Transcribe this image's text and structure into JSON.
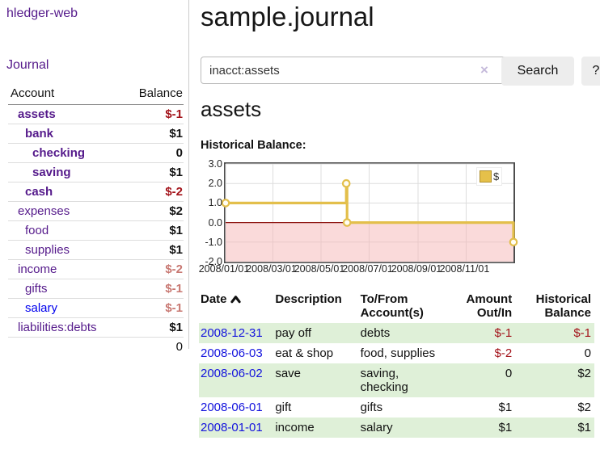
{
  "app": {
    "title": "hledger-web"
  },
  "sidebar": {
    "journal_link": "Journal",
    "accounts_table": {
      "headers": [
        "Account",
        "Balance"
      ],
      "rows": [
        {
          "name": "assets",
          "level": 1,
          "bold": true,
          "balance": "$-1",
          "balance_style": "neg"
        },
        {
          "name": "bank",
          "level": 2,
          "bold": true,
          "balance": "$1",
          "balance_style": ""
        },
        {
          "name": "checking",
          "level": 3,
          "bold": true,
          "balance": "0",
          "balance_style": ""
        },
        {
          "name": "saving",
          "level": 3,
          "bold": true,
          "balance": "$1",
          "balance_style": ""
        },
        {
          "name": "cash",
          "level": 2,
          "bold": true,
          "balance": "$-2",
          "balance_style": "neg"
        },
        {
          "name": "expenses",
          "level": 1,
          "bold": false,
          "balance": "$2",
          "balance_style": ""
        },
        {
          "name": "food",
          "level": 2,
          "bold": false,
          "balance": "$1",
          "balance_style": ""
        },
        {
          "name": "supplies",
          "level": 2,
          "bold": false,
          "balance": "$1",
          "balance_style": ""
        },
        {
          "name": "income",
          "level": 1,
          "bold": false,
          "balance": "$-2",
          "balance_style": "softneg"
        },
        {
          "name": "gifts",
          "level": 2,
          "bold": false,
          "balance": "$-1",
          "balance_style": "softneg"
        },
        {
          "name": "salary",
          "level": 2,
          "bold": false,
          "balance": "$-1",
          "balance_style": "softneg",
          "link_blue": true
        },
        {
          "name": "liabilities:debts",
          "level": 1,
          "bold": false,
          "balance": "$1",
          "balance_style": ""
        }
      ],
      "total": "0"
    }
  },
  "main": {
    "title": "sample.journal",
    "search": {
      "value": "inacct:assets",
      "clear_icon": "×",
      "button_label": "Search",
      "help_label": "?"
    },
    "account_heading": "assets",
    "chart_label": "Historical Balance:"
  },
  "chart_data": {
    "type": "line",
    "title": "Historical Balance:",
    "step": true,
    "legend": [
      {
        "label": "$",
        "color": "#e5c04a"
      }
    ],
    "ylim": [
      -2,
      3
    ],
    "y_ticks": [
      "3.0",
      "2.0",
      "1.0",
      "0.0",
      "-1.0",
      "-2.0"
    ],
    "x_range_days": [
      0,
      365
    ],
    "x_ticks": [
      {
        "label": "2008/01/01",
        "day": 0
      },
      {
        "label": "2008/03/01",
        "day": 60
      },
      {
        "label": "2008/05/01",
        "day": 121
      },
      {
        "label": "2008/07/01",
        "day": 182
      },
      {
        "label": "2008/09/01",
        "day": 244
      },
      {
        "label": "2008/11/01",
        "day": 305
      }
    ],
    "points": [
      {
        "date": "2008-01-01",
        "day": 0,
        "value": 1
      },
      {
        "date": "2008-06-02",
        "day": 153,
        "value": 2
      },
      {
        "date": "2008-06-03",
        "day": 154,
        "value": 0
      },
      {
        "date": "2008-12-31",
        "day": 365,
        "value": -1
      }
    ],
    "series_color": "#e3bf4b",
    "marker_fill": "#fffdf4",
    "grid_color": "#dddddd",
    "negative_region_fill": "#f5b6b6",
    "zero_line_color": "#8f1814"
  },
  "transactions": {
    "headers": [
      "Date",
      "Description",
      "To/From\nAccount(s)",
      "Amount\nOut/In",
      "Historical\nBalance"
    ],
    "rows": [
      {
        "date": "2008-12-31",
        "description": "pay off",
        "accounts": "debts",
        "amount": "$-1",
        "amount_neg": true,
        "balance": "$-1",
        "balance_neg": true,
        "stripe": true
      },
      {
        "date": "2008-06-03",
        "description": "eat & shop",
        "accounts": "food, supplies",
        "amount": "$-2",
        "amount_neg": true,
        "balance": "0",
        "balance_neg": false,
        "stripe": false
      },
      {
        "date": "2008-06-02",
        "description": "save",
        "accounts": "saving, checking",
        "amount": "0",
        "amount_neg": false,
        "balance": "$2",
        "balance_neg": false,
        "stripe": true
      },
      {
        "date": "2008-06-01",
        "description": "gift",
        "accounts": "gifts",
        "amount": "$1",
        "amount_neg": false,
        "balance": "$2",
        "balance_neg": false,
        "stripe": false
      },
      {
        "date": "2008-01-01",
        "description": "income",
        "accounts": "salary",
        "amount": "$1",
        "amount_neg": false,
        "balance": "$1",
        "balance_neg": false,
        "stripe": true
      }
    ]
  },
  "colors": {
    "link_purple": "#551a8b",
    "link_blue": "#0000ee",
    "negative": "#a3131a",
    "soft_negative": "#c87872",
    "row_green": "#dff0d8",
    "chart_border": "#4d4d4d"
  }
}
